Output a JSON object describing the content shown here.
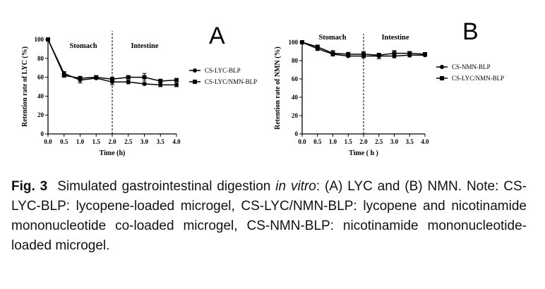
{
  "chart_data": [
    {
      "type": "line",
      "panel_label": "A",
      "ylabel": "Retention rate of LYC (%)",
      "xlabel": "Time (h)",
      "region_labels": [
        "Stomach",
        "Intestine"
      ],
      "phase_boundary_x": 2.0,
      "x": [
        0,
        0.5,
        1.0,
        1.5,
        2.0,
        2.5,
        3.0,
        3.5,
        4.0
      ],
      "xlim": [
        0,
        4
      ],
      "ylim": [
        0,
        100
      ],
      "x_ticks": [
        "0.0",
        "0.5",
        "1.0",
        "1.5",
        "2.0",
        "2.5",
        "3.0",
        "3.5",
        "4.0"
      ],
      "y_ticks": [
        "0",
        "20",
        "40",
        "60",
        "80",
        "100"
      ],
      "legend_position": "right",
      "series": [
        {
          "name": "CS-LYC-BLP",
          "marker": "circle",
          "values": [
            100,
            64,
            57,
            59,
            55,
            55,
            53,
            52,
            52
          ],
          "errors": [
            0,
            2,
            3,
            1,
            3,
            2,
            1,
            2,
            2
          ]
        },
        {
          "name": "CS-LYC/NMN-BLP",
          "marker": "square",
          "values": [
            100,
            62,
            59,
            60,
            58,
            60,
            60,
            56,
            57
          ],
          "errors": [
            0,
            2,
            2,
            1,
            2,
            1,
            4,
            2,
            1
          ]
        }
      ]
    },
    {
      "type": "line",
      "panel_label": "B",
      "ylabel": "Retention rate of NMN (%)",
      "xlabel": "Time ( h )",
      "region_labels": [
        "Stomach",
        "Intestine"
      ],
      "phase_boundary_x": 2.0,
      "x": [
        0,
        0.5,
        1.0,
        1.5,
        2.0,
        2.5,
        3.0,
        3.5,
        4.0
      ],
      "xlim": [
        0,
        4
      ],
      "ylim": [
        0,
        100
      ],
      "x_ticks": [
        "0.0",
        "0.5",
        "1.0",
        "1.5",
        "2.0",
        "2.5",
        "3.0",
        "3.5",
        "4.0"
      ],
      "y_ticks": [
        "0",
        "20",
        "40",
        "60",
        "80",
        "100"
      ],
      "legend_position": "right",
      "series": [
        {
          "name": "CS-NMN-BLP",
          "marker": "circle",
          "values": [
            100,
            93,
            87,
            85,
            85,
            85,
            85,
            86,
            86
          ],
          "errors": [
            0,
            2,
            2,
            1,
            2,
            3,
            2,
            2,
            1
          ]
        },
        {
          "name": "CS-LYC/NMN-BLP",
          "marker": "square",
          "values": [
            100,
            95,
            88,
            87,
            87,
            86,
            88,
            88,
            87
          ],
          "errors": [
            0,
            2,
            3,
            2,
            3,
            2,
            3,
            2,
            1
          ]
        }
      ]
    }
  ],
  "caption": {
    "label": "Fig. 3",
    "text_before_italic": "Simulated gastrointestinal digestion ",
    "italic": "in vitro",
    "text_after_italic": ": (A) LYC and (B) NMN. Note: CS-LYC-BLP: lycopene-loaded microgel, CS-LYC/NMN-BLP: lycopene and nicotinamide mononucleotide co-loaded microgel, CS-NMN-BLP: nicotinamide mononucleotide-loaded microgel."
  }
}
